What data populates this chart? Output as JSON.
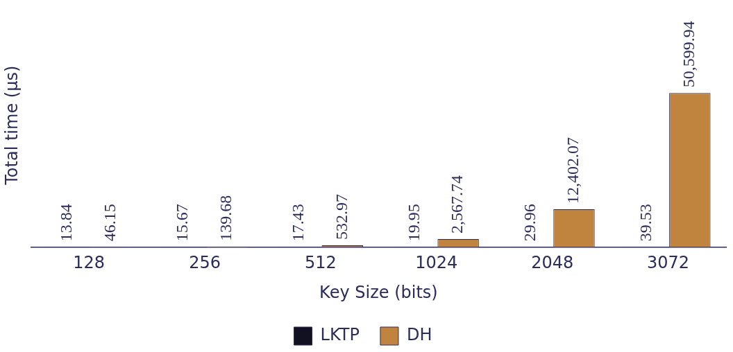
{
  "chart_data": {
    "type": "bar",
    "xlabel": "Key Size (bits)",
    "ylabel": "Total time (μs)",
    "categories": [
      "128",
      "256",
      "512",
      "1024",
      "2048",
      "3072"
    ],
    "series": [
      {
        "name": "LKTP",
        "color": "#111122",
        "values": [
          13.84,
          15.67,
          17.43,
          19.95,
          29.96,
          39.53
        ],
        "value_labels": [
          "13.84",
          "15.67",
          "17.43",
          "19.95",
          "29.96",
          "39.53"
        ]
      },
      {
        "name": "DH",
        "color": "#c0843f",
        "values": [
          46.15,
          139.68,
          532.97,
          2567.74,
          12402.07,
          50599.94
        ],
        "value_labels": [
          "46.15",
          "139.68",
          "532.97",
          "2,567.74",
          "12,402.07",
          "50,599.94"
        ]
      }
    ],
    "legend": "bottom",
    "tick_labels": "x"
  }
}
